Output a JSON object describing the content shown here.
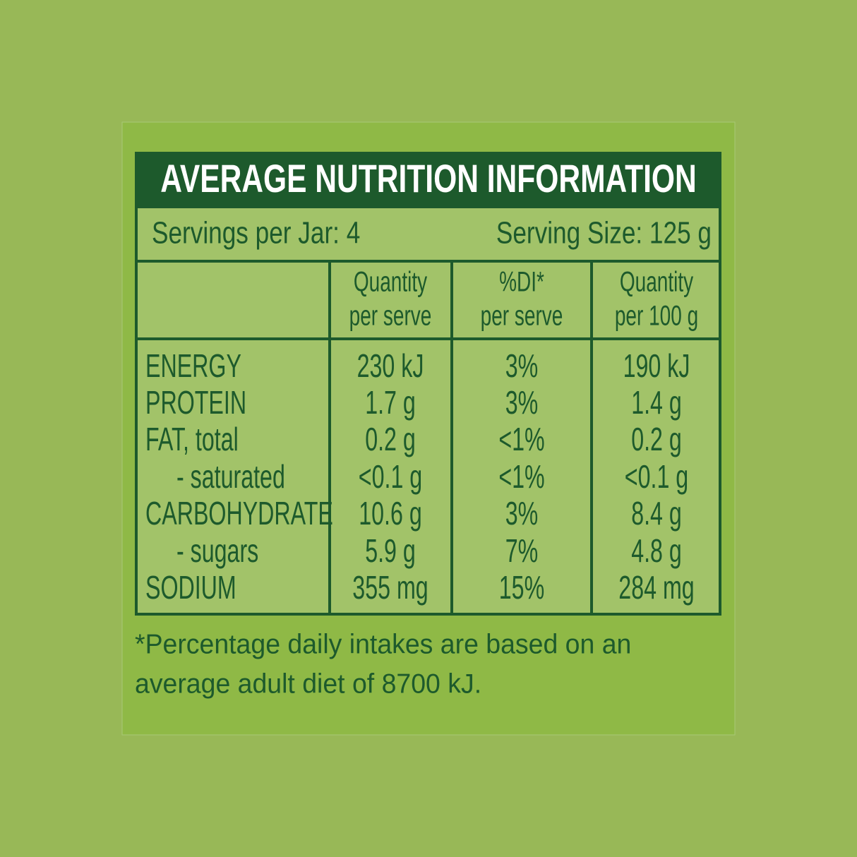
{
  "title": "AVERAGE NUTRITION INFORMATION",
  "servings": {
    "per_pack": "Servings per Jar: 4",
    "size": "Serving Size: 125 g"
  },
  "columns": [
    [
      "Quantity",
      "per serve"
    ],
    [
      "%DI*",
      "per serve"
    ],
    [
      "Quantity",
      "per 100 g"
    ]
  ],
  "rows": [
    [
      "ENERGY",
      "230 kJ",
      "3%",
      "190 kJ"
    ],
    [
      "PROTEIN",
      "1.7 g",
      "3%",
      "1.4 g"
    ],
    [
      "FAT, total",
      "0.2 g",
      "<1%",
      "0.2 g"
    ],
    [
      "- saturated",
      "<0.1 g",
      "<1%",
      "<0.1 g"
    ],
    [
      "CARBOHYDRATE",
      "10.6 g",
      "3%",
      "8.4 g"
    ],
    [
      "- sugars",
      "5.9 g",
      "7%",
      "4.8 g"
    ],
    [
      "SODIUM",
      "355 mg",
      "15%",
      "284 mg"
    ]
  ],
  "footnote": [
    "*Percentage daily intakes are based on an",
    "average adult diet of 8700 kJ."
  ]
}
